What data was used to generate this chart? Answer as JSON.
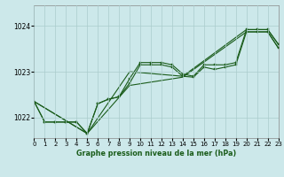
{
  "title": "Graphe pression niveau de la mer (hPa)",
  "bg_color": "#cce8ea",
  "grid_color": "#aacccc",
  "line_color": "#1a5c1a",
  "xlim": [
    0,
    23
  ],
  "ylim": [
    1021.55,
    1024.45
  ],
  "yticks": [
    1022,
    1023,
    1024
  ],
  "xtick_labels": [
    "0",
    "1",
    "2",
    "3",
    "4",
    "5",
    "6",
    "7",
    "8",
    "9",
    "10",
    "11",
    "12",
    "13",
    "14",
    "15",
    "16",
    "17",
    "18",
    "19",
    "20",
    "21",
    "22",
    "23"
  ],
  "lines": [
    {
      "points": [
        [
          0,
          1022.35
        ],
        [
          1,
          1021.9
        ],
        [
          2,
          1021.9
        ],
        [
          3,
          1021.9
        ],
        [
          4,
          1021.9
        ],
        [
          5,
          1021.65
        ],
        [
          6,
          1022.3
        ],
        [
          7,
          1022.4
        ],
        [
          8,
          1022.45
        ],
        [
          9,
          1022.85
        ],
        [
          10,
          1023.2
        ],
        [
          11,
          1023.2
        ],
        [
          12,
          1023.2
        ],
        [
          13,
          1023.15
        ],
        [
          14,
          1022.95
        ],
        [
          15,
          1022.9
        ],
        [
          16,
          1023.15
        ],
        [
          17,
          1023.15
        ],
        [
          18,
          1023.15
        ],
        [
          19,
          1023.2
        ],
        [
          20,
          1023.92
        ],
        [
          21,
          1023.92
        ],
        [
          22,
          1023.92
        ],
        [
          23,
          1023.6
        ]
      ],
      "marker": true
    },
    {
      "points": [
        [
          0,
          1022.35
        ],
        [
          1,
          1021.9
        ],
        [
          2,
          1021.9
        ],
        [
          3,
          1021.9
        ],
        [
          4,
          1021.9
        ],
        [
          5,
          1021.65
        ],
        [
          6,
          1022.3
        ],
        [
          7,
          1022.4
        ],
        [
          8,
          1022.45
        ],
        [
          9,
          1022.75
        ],
        [
          10,
          1023.15
        ],
        [
          11,
          1023.15
        ],
        [
          12,
          1023.15
        ],
        [
          13,
          1023.1
        ],
        [
          14,
          1022.9
        ],
        [
          15,
          1022.88
        ],
        [
          16,
          1023.1
        ],
        [
          17,
          1023.05
        ],
        [
          18,
          1023.1
        ],
        [
          19,
          1023.15
        ],
        [
          20,
          1023.87
        ],
        [
          21,
          1023.87
        ],
        [
          22,
          1023.87
        ],
        [
          23,
          1023.52
        ]
      ],
      "marker": true
    },
    {
      "points": [
        [
          0,
          1022.35
        ],
        [
          5,
          1021.65
        ],
        [
          9,
          1023.0
        ],
        [
          14,
          1022.9
        ],
        [
          20,
          1023.92
        ],
        [
          22,
          1023.92
        ],
        [
          23,
          1023.6
        ]
      ],
      "marker": false
    },
    {
      "points": [
        [
          0,
          1022.35
        ],
        [
          5,
          1021.65
        ],
        [
          9,
          1022.7
        ],
        [
          14,
          1022.88
        ],
        [
          20,
          1023.87
        ],
        [
          22,
          1023.87
        ],
        [
          23,
          1023.52
        ]
      ],
      "marker": false
    }
  ]
}
